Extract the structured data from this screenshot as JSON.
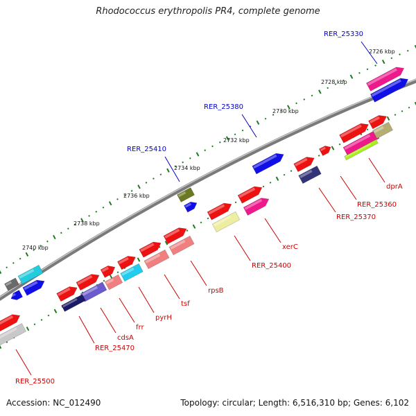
{
  "header": {
    "title": "Rhodococcus erythropolis PR4, complete genome"
  },
  "footer": {
    "accession": "Accession: NC_012490",
    "summary": "Topology: circular; Length: 6,516,310 bp; Genes: 6,102"
  },
  "ruler": {
    "ticks": [
      "2726 kbp",
      "2728 kbp",
      "2730 kbp",
      "2732 kbp",
      "2734 kbp",
      "2736 kbp",
      "2738 kbp",
      "2740 kbp"
    ]
  },
  "genes": [
    {
      "name": "RER_25330",
      "color": "#0000cc",
      "kind": "locus"
    },
    {
      "name": "RER_25380",
      "color": "#0000cc",
      "kind": "locus"
    },
    {
      "name": "RER_25410",
      "color": "#0000cc",
      "kind": "locus"
    },
    {
      "name": "dprA",
      "color": "#cc0000",
      "kind": "gene"
    },
    {
      "name": "RER_25360",
      "color": "#cc0000",
      "kind": "gene"
    },
    {
      "name": "RER_25370",
      "color": "#cc0000",
      "kind": "gene"
    },
    {
      "name": "xerC",
      "color": "#cc0000",
      "kind": "gene"
    },
    {
      "name": "RER_25400",
      "color": "#cc0000",
      "kind": "gene"
    },
    {
      "name": "rpsB",
      "color": "#cc0000",
      "kind": "gene"
    },
    {
      "name": "tsf",
      "color": "#cc0000",
      "kind": "gene"
    },
    {
      "name": "pyrH",
      "color": "#cc0000",
      "kind": "gene"
    },
    {
      "name": "frr",
      "color": "#cc0000",
      "kind": "gene"
    },
    {
      "name": "cdsA",
      "color": "#cc0000",
      "kind": "gene"
    },
    {
      "name": "RER_25470",
      "color": "#cc0000",
      "kind": "gene"
    },
    {
      "name": "RER_25500",
      "color": "#cc0000",
      "kind": "gene"
    }
  ]
}
